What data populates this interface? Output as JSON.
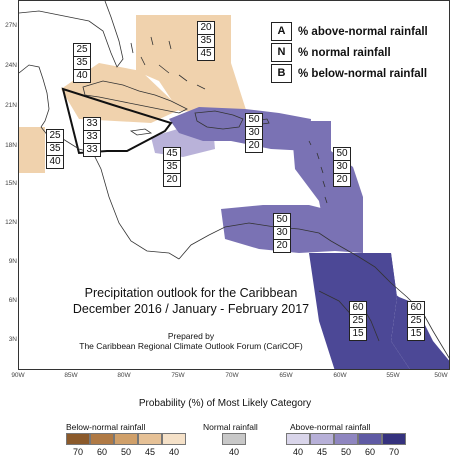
{
  "map": {
    "lat_labels": [
      "27N",
      "24N",
      "21N",
      "18N",
      "15N",
      "12N",
      "9N",
      "6N",
      "3N"
    ],
    "lon_labels": [
      "90W",
      "85W",
      "80W",
      "75W",
      "70W",
      "65W",
      "60W",
      "55W",
      "50W"
    ]
  },
  "key": {
    "rows": [
      {
        "letter": "A",
        "text": "% above-normal rainfall"
      },
      {
        "letter": "N",
        "text": "% normal rainfall"
      },
      {
        "letter": "B",
        "text": "% below-normal rainfall"
      }
    ]
  },
  "regions": [
    {
      "name": "bahamas",
      "values": [
        "20",
        "35",
        "45"
      ],
      "fill": "below-40"
    },
    {
      "name": "cuba-west-florida",
      "values": [
        "25",
        "35",
        "40"
      ],
      "fill": "below-40"
    },
    {
      "name": "belize",
      "values": [
        "25",
        "35",
        "40"
      ],
      "fill": "below-40"
    },
    {
      "name": "jamaica-region",
      "values": [
        "33",
        "33",
        "33"
      ],
      "fill": "none"
    },
    {
      "name": "hispaniola-south",
      "values": [
        "45",
        "35",
        "20"
      ],
      "fill": "above-45"
    },
    {
      "name": "greater-antilles",
      "values": [
        "50",
        "30",
        "20"
      ],
      "fill": "above-50"
    },
    {
      "name": "lesser-antilles",
      "values": [
        "50",
        "30",
        "20"
      ],
      "fill": "above-50"
    },
    {
      "name": "southern-caribbean",
      "values": [
        "50",
        "30",
        "20"
      ],
      "fill": "above-50"
    },
    {
      "name": "guyana",
      "values": [
        "60",
        "25",
        "15"
      ],
      "fill": "above-60"
    },
    {
      "name": "french-guiana",
      "values": [
        "60",
        "25",
        "15"
      ],
      "fill": "above-60"
    }
  ],
  "title": {
    "line1": "Precipitation outlook for the Caribbean",
    "line2": "December 2016 / January - February 2017"
  },
  "prepared_by": {
    "line1": "Prepared by",
    "line2": "The Caribbean Regional Climate Outlook Forum (CariCOF)"
  },
  "legend": {
    "title": "Probability (%) of Most Likely Category",
    "below": {
      "label": "Below-normal rainfall",
      "values": [
        "70",
        "60",
        "50",
        "45",
        "40"
      ],
      "colors": [
        "#8b5a2b",
        "#b07a45",
        "#d0a06a",
        "#e6c196",
        "#f5e1c8"
      ]
    },
    "normal": {
      "label": "Normal rainfall",
      "values": [
        "40"
      ],
      "colors": [
        "#c8c8c8"
      ]
    },
    "above": {
      "label": "Above-normal rainfall",
      "values": [
        "40",
        "45",
        "50",
        "60",
        "70"
      ],
      "colors": [
        "#d9d5ea",
        "#b7b0d8",
        "#8f86c0",
        "#5f5aa4",
        "#35327e"
      ]
    }
  },
  "colors": {
    "below-40": "#f0d2ad",
    "above-45": "#b9b2d9",
    "above-50": "#7a72b4",
    "above-60": "#4c4896",
    "coast": "#333333"
  }
}
